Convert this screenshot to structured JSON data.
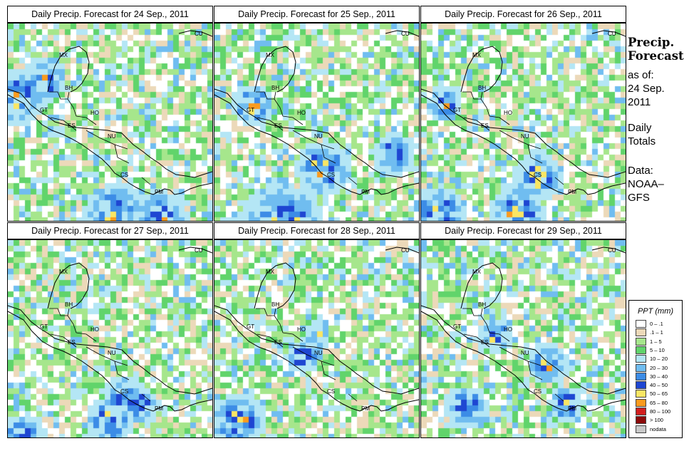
{
  "panels": [
    {
      "title": "Daily Precip. Forecast for  24 Sep., 2011"
    },
    {
      "title": "Daily Precip. Forecast for  25 Sep., 2011"
    },
    {
      "title": "Daily Precip. Forecast for  26 Sep., 2011"
    },
    {
      "title": "Daily Precip. Forecast for  27 Sep., 2011"
    },
    {
      "title": "Daily Precip. Forecast for  28 Sep., 2011"
    },
    {
      "title": "Daily Precip. Forecast for  29 Sep., 2011"
    }
  ],
  "country_labels": [
    "CU",
    "MX",
    "BH",
    "GT",
    "HO",
    "ES",
    "NU",
    "CS",
    "PM"
  ],
  "sidebar": {
    "title_line1": "Precip.",
    "title_line2": "Forecast",
    "asof_line1": "as of:",
    "asof_line2": "24 Sep.",
    "asof_line3": "2011",
    "daily_line1": "Daily",
    "daily_line2": "Totals",
    "data_line1": "Data:",
    "data_line2": "NOAA–",
    "data_line3": "GFS"
  },
  "legend": {
    "title": "PPT (mm)",
    "items": [
      {
        "label": "0 – .1",
        "color": "#ffffff"
      },
      {
        "label": ".1 – 1",
        "color": "#ecd9b9"
      },
      {
        "label": "1 – 5",
        "color": "#a6e68c"
      },
      {
        "label": "5 – 10",
        "color": "#61d46b"
      },
      {
        "label": "10 – 20",
        "color": "#b4e6f5"
      },
      {
        "label": "20 – 30",
        "color": "#70bdf0"
      },
      {
        "label": "30 – 40",
        "color": "#3c8ce6"
      },
      {
        "label": "40 – 50",
        "color": "#1e46d2"
      },
      {
        "label": "50 – 65",
        "color": "#fae664"
      },
      {
        "label": "65 – 80",
        "color": "#fa9b1e"
      },
      {
        "label": "80 – 100",
        "color": "#d21e1e"
      },
      {
        "label": "> 100",
        "color": "#8c0a0a"
      },
      {
        "label": "nodata",
        "color": "#c8c8c8"
      }
    ]
  }
}
